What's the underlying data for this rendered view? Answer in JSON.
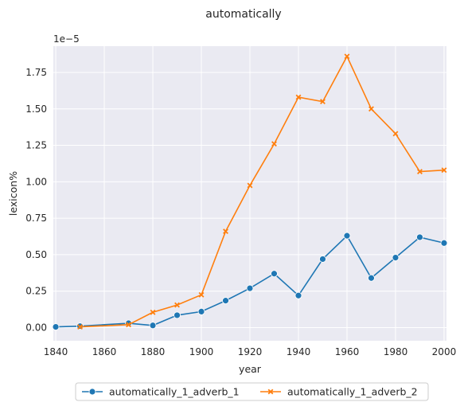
{
  "chart_data": {
    "type": "line",
    "title": "automatically",
    "xlabel": "year",
    "ylabel": "lexicon%",
    "y_offset_label": "1e−5",
    "xlim": [
      1839,
      2001
    ],
    "ylim": [
      -0.09,
      1.93
    ],
    "xticks": [
      1840,
      1860,
      1880,
      1900,
      1920,
      1940,
      1960,
      1980,
      2000
    ],
    "yticks": [
      0.0,
      0.25,
      0.5,
      0.75,
      1.0,
      1.25,
      1.5,
      1.75
    ],
    "ytick_labels": [
      "0.00",
      "0.25",
      "0.50",
      "0.75",
      "1.00",
      "1.25",
      "1.50",
      "1.75"
    ],
    "grid": true,
    "legend_placement": "bottom-center",
    "series": [
      {
        "name": "automatically_1_adverb_1",
        "color": "#1f77b4",
        "marker": "circle",
        "x": [
          1840,
          1850,
          1870,
          1880,
          1890,
          1900,
          1910,
          1920,
          1930,
          1940,
          1950,
          1960,
          1970,
          1980,
          1990,
          2000
        ],
        "y": [
          0.005,
          0.01,
          0.03,
          0.015,
          0.085,
          0.11,
          0.185,
          0.27,
          0.37,
          0.22,
          0.47,
          0.63,
          0.34,
          0.48,
          0.62,
          0.58
        ]
      },
      {
        "name": "automatically_1_adverb_2",
        "color": "#ff7f0e",
        "marker": "x",
        "x": [
          1850,
          1870,
          1880,
          1890,
          1900,
          1910,
          1920,
          1930,
          1940,
          1950,
          1960,
          1970,
          1980,
          1990,
          2000
        ],
        "y": [
          0.005,
          0.02,
          0.105,
          0.155,
          0.225,
          0.66,
          0.975,
          1.26,
          1.58,
          1.55,
          1.86,
          1.5,
          1.33,
          1.07,
          1.08
        ]
      }
    ]
  }
}
